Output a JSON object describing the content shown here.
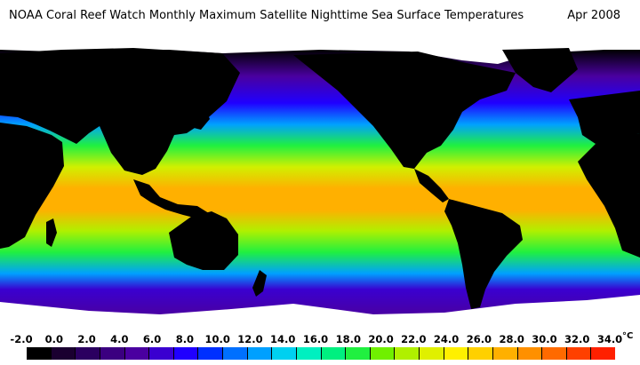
{
  "title": "NOAA Coral Reef Watch Monthly Maximum Satellite Nighttime Sea Surface Temperatures",
  "date": "Apr 2008",
  "legend": {
    "unit": "°C",
    "tick_labels": [
      "-2.0",
      "0.0",
      "2.0",
      "4.0",
      "6.0",
      "8.0",
      "10.0",
      "12.0",
      "14.0",
      "16.0",
      "18.0",
      "20.0",
      "22.0",
      "24.0",
      "26.0",
      "28.0",
      "30.0",
      "32.0",
      "34.0"
    ],
    "colors": [
      "#000000",
      "#1a0030",
      "#2b0060",
      "#3b0080",
      "#4a00a0",
      "#3a00d0",
      "#2000ff",
      "#0030ff",
      "#0070ff",
      "#00a0ff",
      "#00d0f0",
      "#00f0c0",
      "#00f080",
      "#20f040",
      "#70f000",
      "#b0f000",
      "#e0f000",
      "#fff000",
      "#ffd000",
      "#ffb000",
      "#ff9000",
      "#ff6a00",
      "#ff4000",
      "#ff2000"
    ]
  },
  "map": {
    "land_color": "#000000",
    "ice_color": "#ffffff"
  }
}
